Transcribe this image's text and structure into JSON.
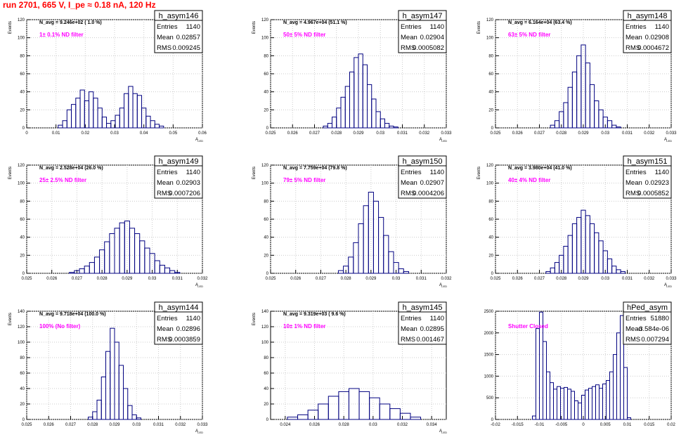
{
  "title": "run 2701,   665 V, I_pe ≈ 0.18 nA, 120 Hz",
  "colors": {
    "histogram": "#000080",
    "annotation": "#ff00ff",
    "title": "#ff0000"
  },
  "chart_data": [
    {
      "type": "histogram",
      "name": "h_asym146",
      "stats": {
        "entries_label": "Entries",
        "entries": "1140",
        "mean_label": "Mean",
        "mean": "0.02857",
        "rms_label": "RMS",
        "rms": "0.009245"
      },
      "navg": "N_avg = 9.246e+02 ( 1.0 %)",
      "filter": "1± 0.1% ND filter",
      "xlabel": "A",
      "xlabel_sub": "LED",
      "ylabel": "Events",
      "xlim": [
        0,
        0.06
      ],
      "ylim": [
        0,
        120
      ],
      "xticks": [
        "0",
        "0.01",
        "0.02",
        "0.03",
        "0.04",
        "0.05",
        "0.06"
      ],
      "yticks": [
        "0",
        "20",
        "40",
        "60",
        "80",
        "100",
        "120"
      ],
      "x": [
        0.0115,
        0.013,
        0.0145,
        0.016,
        0.0175,
        0.019,
        0.0205,
        0.022,
        0.0235,
        0.025,
        0.0265,
        0.028,
        0.0295,
        0.031,
        0.0325,
        0.034,
        0.0355,
        0.037,
        0.0385,
        0.04,
        0.0415,
        0.043,
        0.0445,
        0.046
      ],
      "values": [
        3,
        8,
        20,
        26,
        33,
        42,
        30,
        40,
        33,
        22,
        12,
        5,
        8,
        14,
        22,
        38,
        46,
        38,
        36,
        22,
        13,
        8,
        4,
        2
      ]
    },
    {
      "type": "histogram",
      "name": "h_asym147",
      "stats": {
        "entries_label": "Entries",
        "entries": "1140",
        "mean_label": "Mean",
        "mean": "0.02904",
        "rms_label": "RMS",
        "rms": "0.0005082"
      },
      "navg": "N_avg = 4.967e+04 (51.1 %)",
      "filter": "50± 5% ND filter",
      "xlabel": "A",
      "xlabel_sub": "LED",
      "ylabel": "Events",
      "xlim": [
        0.025,
        0.033
      ],
      "ylim": [
        0,
        120
      ],
      "xticks": [
        "0.025",
        "0.026",
        "0.027",
        "0.028",
        "0.029",
        "0.03",
        "0.031",
        "0.032",
        "0.033"
      ],
      "yticks": [
        "0",
        "20",
        "40",
        "60",
        "80",
        "100",
        "120"
      ],
      "x": [
        0.0275,
        0.0277,
        0.0279,
        0.0281,
        0.0283,
        0.0285,
        0.0287,
        0.0289,
        0.0291,
        0.0293,
        0.0295,
        0.0297,
        0.0299,
        0.0301,
        0.0303,
        0.0305,
        0.0307
      ],
      "values": [
        2,
        5,
        12,
        22,
        34,
        46,
        62,
        78,
        82,
        70,
        48,
        32,
        18,
        10,
        5,
        2,
        1
      ]
    },
    {
      "type": "histogram",
      "name": "h_asym148",
      "stats": {
        "entries_label": "Entries",
        "entries": "1140",
        "mean_label": "Mean",
        "mean": "0.02908",
        "rms_label": "RMS",
        "rms": "0.0004672"
      },
      "navg": "N_avg = 6.164e+04 (63.4 %)",
      "filter": "63± 5% ND filter",
      "xlabel": "A",
      "xlabel_sub": "LED",
      "ylabel": "Events",
      "xlim": [
        0.025,
        0.033
      ],
      "ylim": [
        0,
        120
      ],
      "xticks": [
        "0.025",
        "0.026",
        "0.027",
        "0.028",
        "0.029",
        "0.03",
        "0.031",
        "0.032",
        "0.033"
      ],
      "yticks": [
        "0",
        "20",
        "40",
        "60",
        "80",
        "100",
        "120"
      ],
      "x": [
        0.0276,
        0.0278,
        0.028,
        0.0282,
        0.0284,
        0.0286,
        0.0288,
        0.029,
        0.0292,
        0.0294,
        0.0296,
        0.0298,
        0.03,
        0.0302,
        0.0304,
        0.0306
      ],
      "values": [
        3,
        8,
        18,
        28,
        45,
        62,
        80,
        92,
        72,
        48,
        30,
        20,
        12,
        8,
        3,
        1
      ]
    },
    {
      "type": "histogram",
      "name": "h_asym149",
      "stats": {
        "entries_label": "Entries",
        "entries": "1140",
        "mean_label": "Mean",
        "mean": "0.02903",
        "rms_label": "RMS",
        "rms": "0.0007206"
      },
      "navg": "N_avg = 2.528e+04 (26.0 %)",
      "filter": "25± 2.5% ND filter",
      "xlabel": "A",
      "xlabel_sub": "LED",
      "ylabel": "Events",
      "xlim": [
        0.025,
        0.032
      ],
      "ylim": [
        0,
        120
      ],
      "xticks": [
        "0.025",
        "0.026",
        "0.027",
        "0.028",
        "0.029",
        "0.03",
        "0.031",
        "0.032"
      ],
      "yticks": [
        "0",
        "20",
        "40",
        "60",
        "80",
        "100",
        "120"
      ],
      "x": [
        0.0268,
        0.027,
        0.0272,
        0.0274,
        0.0276,
        0.0278,
        0.028,
        0.0282,
        0.0284,
        0.0286,
        0.0288,
        0.029,
        0.0292,
        0.0294,
        0.0296,
        0.0298,
        0.03,
        0.0302,
        0.0304,
        0.0306,
        0.0308,
        0.031
      ],
      "values": [
        1,
        3,
        5,
        8,
        12,
        18,
        26,
        35,
        44,
        50,
        56,
        58,
        50,
        44,
        36,
        28,
        22,
        14,
        9,
        6,
        3,
        1
      ]
    },
    {
      "type": "histogram",
      "name": "h_asym150",
      "stats": {
        "entries_label": "Entries",
        "entries": "1140",
        "mean_label": "Mean",
        "mean": "0.02907",
        "rms_label": "RMS",
        "rms": "0.0004206"
      },
      "navg": "N_avg = 7.759e+04 (79.8 %)",
      "filter": "79± 5% ND filter",
      "xlabel": "A",
      "xlabel_sub": "LED",
      "ylabel": "Events",
      "xlim": [
        0.025,
        0.032
      ],
      "ylim": [
        0,
        120
      ],
      "xticks": [
        "0.025",
        "0.026",
        "0.027",
        "0.028",
        "0.029",
        "0.03",
        "0.031",
        "0.032"
      ],
      "yticks": [
        "0",
        "20",
        "40",
        "60",
        "80",
        "100",
        "120"
      ],
      "x": [
        0.0278,
        0.028,
        0.0282,
        0.0284,
        0.0286,
        0.0288,
        0.029,
        0.0292,
        0.0294,
        0.0296,
        0.0298,
        0.03,
        0.0302,
        0.0304
      ],
      "values": [
        3,
        8,
        18,
        34,
        55,
        75,
        90,
        80,
        62,
        42,
        24,
        12,
        5,
        2
      ]
    },
    {
      "type": "histogram",
      "name": "h_asym151",
      "stats": {
        "entries_label": "Entries",
        "entries": "1140",
        "mean_label": "Mean",
        "mean": "0.02923",
        "rms_label": "RMS",
        "rms": "0.0005852"
      },
      "navg": "N_avg = 3.980e+04 (41.0 %)",
      "filter": "40± 4% ND filter",
      "xlabel": "A",
      "xlabel_sub": "LED",
      "ylabel": "Events",
      "xlim": [
        0.025,
        0.033
      ],
      "ylim": [
        0,
        120
      ],
      "xticks": [
        "0.025",
        "0.026",
        "0.027",
        "0.028",
        "0.029",
        "0.03",
        "0.031",
        "0.032",
        "0.033"
      ],
      "yticks": [
        "0",
        "20",
        "40",
        "60",
        "80",
        "100",
        "120"
      ],
      "x": [
        0.0274,
        0.0276,
        0.0278,
        0.028,
        0.0282,
        0.0284,
        0.0286,
        0.0288,
        0.029,
        0.0292,
        0.0294,
        0.0296,
        0.0298,
        0.03,
        0.0302,
        0.0304,
        0.0306,
        0.0308
      ],
      "values": [
        2,
        6,
        12,
        20,
        30,
        42,
        55,
        62,
        70,
        64,
        55,
        45,
        36,
        25,
        16,
        8,
        4,
        2
      ]
    },
    {
      "type": "histogram",
      "name": "h_asym144",
      "stats": {
        "entries_label": "Entries",
        "entries": "1140",
        "mean_label": "Mean",
        "mean": "0.02896",
        "rms_label": "RMS",
        "rms": "0.0003859"
      },
      "navg": "N_avg = 9.718e+04 (100.0 %)",
      "filter": "100% (No filter)",
      "xlabel": "A",
      "xlabel_sub": "LED",
      "ylabel": "Events",
      "xlim": [
        0.025,
        0.033
      ],
      "ylim": [
        0,
        140
      ],
      "xticks": [
        "0.025",
        "0.026",
        "0.027",
        "0.028",
        "0.029",
        "0.03",
        "0.031",
        "0.032",
        "0.033"
      ],
      "yticks": [
        "0",
        "20",
        "40",
        "60",
        "80",
        "100",
        "120",
        "140"
      ],
      "x": [
        0.0279,
        0.0281,
        0.0283,
        0.0285,
        0.0287,
        0.0289,
        0.0291,
        0.0293,
        0.0295,
        0.0297,
        0.0299,
        0.0301
      ],
      "values": [
        3,
        10,
        25,
        55,
        88,
        118,
        100,
        70,
        40,
        18,
        6,
        2
      ]
    },
    {
      "type": "histogram",
      "name": "h_asym145",
      "stats": {
        "entries_label": "Entries",
        "entries": "1140",
        "mean_label": "Mean",
        "mean": "0.02895",
        "rms_label": "RMS",
        "rms": "0.001467"
      },
      "navg": "N_avg = 9.319e+03 ( 9.6 %)",
      "filter": "10± 1% ND filter",
      "xlabel": "A",
      "xlabel_sub": "LED",
      "ylabel": "Events",
      "xlim": [
        0.023,
        0.035
      ],
      "ylim": [
        0,
        140
      ],
      "xticks": [
        "0.024",
        "0.026",
        "0.028",
        "0.03",
        "0.032",
        "0.034"
      ],
      "yticks": [
        "0",
        "20",
        "40",
        "60",
        "80",
        "100",
        "120",
        "140"
      ],
      "x": [
        0.0245,
        0.0252,
        0.0259,
        0.0266,
        0.0273,
        0.028,
        0.0287,
        0.0294,
        0.0301,
        0.0308,
        0.0315,
        0.0322,
        0.0329
      ],
      "values": [
        3,
        6,
        12,
        20,
        30,
        36,
        40,
        36,
        28,
        20,
        14,
        8,
        3
      ]
    },
    {
      "type": "histogram",
      "name": "hPed_asym",
      "stats": {
        "entries_label": "Entries",
        "entries": "51880",
        "mean_label": "Mean",
        "mean": "-3.584e-06",
        "rms_label": "RMS",
        "rms": "0.007294"
      },
      "navg": "",
      "filter": "Shutter Closed",
      "xlabel": "",
      "xlabel_sub": "",
      "ylabel": "",
      "xlim": [
        -0.02,
        0.02
      ],
      "ylim": [
        0,
        2500
      ],
      "xticks": [
        "-0.02",
        "-0.015",
        "-0.01",
        "-0.005",
        "0",
        "0.005",
        "0.01",
        "0.015",
        "0.02"
      ],
      "yticks": [
        "0",
        "500",
        "1000",
        "1500",
        "2000",
        "2500"
      ],
      "x": [
        -0.0112,
        -0.0104,
        -0.0096,
        -0.0088,
        -0.008,
        -0.0072,
        -0.0064,
        -0.0056,
        -0.0048,
        -0.004,
        -0.0032,
        -0.0024,
        -0.0016,
        -0.0008,
        0,
        0.0008,
        0.0016,
        0.0024,
        0.0032,
        0.004,
        0.0048,
        0.0056,
        0.0064,
        0.0072,
        0.008,
        0.0088,
        0.0096,
        0.0104
      ],
      "values": [
        80,
        2100,
        2480,
        1800,
        1100,
        850,
        700,
        760,
        720,
        740,
        700,
        650,
        430,
        380,
        560,
        680,
        720,
        760,
        800,
        720,
        820,
        900,
        1100,
        1500,
        2000,
        2400,
        1200,
        40
      ]
    }
  ]
}
